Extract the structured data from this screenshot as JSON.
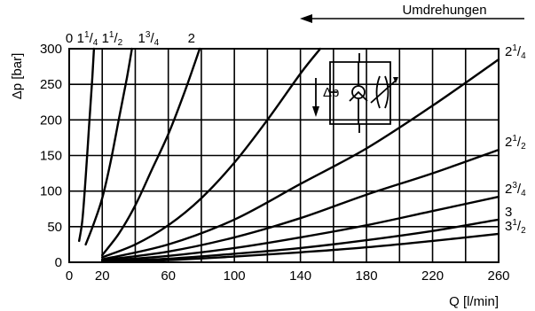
{
  "chart_data": {
    "type": "line",
    "xlabel": "Q [l/min]",
    "ylabel": "Δp [bar]",
    "top_axis_title": "Umdrehungen",
    "xlim": [
      0,
      260
    ],
    "ylim": [
      0,
      300
    ],
    "x_ticks": [
      {
        "value": 0,
        "label": "0"
      },
      {
        "value": 20,
        "label": "20"
      },
      {
        "value": 60,
        "label": "60"
      },
      {
        "value": 100,
        "label": "100"
      },
      {
        "value": 140,
        "label": "140"
      },
      {
        "value": 180,
        "label": "180"
      },
      {
        "value": 220,
        "label": "220"
      },
      {
        "value": 260,
        "label": "260"
      }
    ],
    "x_grid": [
      0,
      20,
      40,
      60,
      80,
      100,
      120,
      140,
      160,
      180,
      200,
      220,
      240,
      260
    ],
    "y_ticks": [
      {
        "value": 0,
        "label": "0"
      },
      {
        "value": 50,
        "label": "50"
      },
      {
        "value": 100,
        "label": "100"
      },
      {
        "value": 150,
        "label": "150"
      },
      {
        "value": 200,
        "label": "200"
      },
      {
        "value": 250,
        "label": "250"
      },
      {
        "value": 300,
        "label": "300"
      }
    ],
    "top_ticks": [
      {
        "value": 0,
        "whole": "0",
        "num": "",
        "den": ""
      },
      {
        "value": 11,
        "whole": "1",
        "num": "1",
        "den": "4"
      },
      {
        "value": 26,
        "whole": "1",
        "num": "1",
        "den": "2"
      },
      {
        "value": 48,
        "whole": "1",
        "num": "3",
        "den": "4"
      },
      {
        "value": 74,
        "whole": "2",
        "num": "",
        "den": ""
      }
    ],
    "series": [
      {
        "whole": "1",
        "num": "",
        "den": "",
        "points": [
          [
            6,
            30
          ],
          [
            8,
            60
          ],
          [
            10,
            120
          ],
          [
            12,
            190
          ],
          [
            14,
            260
          ],
          [
            15,
            300
          ]
        ]
      },
      {
        "whole": "1",
        "num": "1",
        "den": "4",
        "points": [
          [
            10,
            25
          ],
          [
            15,
            55
          ],
          [
            20,
            90
          ],
          [
            25,
            140
          ],
          [
            30,
            200
          ],
          [
            35,
            260
          ],
          [
            38,
            300
          ]
        ]
      },
      {
        "whole": "1",
        "num": "1",
        "den": "2",
        "points": [
          [
            20,
            10
          ],
          [
            30,
            40
          ],
          [
            40,
            80
          ],
          [
            50,
            130
          ],
          [
            60,
            180
          ],
          [
            70,
            240
          ],
          [
            79,
            300
          ]
        ]
      },
      {
        "whole": "1",
        "num": "3",
        "den": "4",
        "points": [
          [
            20,
            7
          ],
          [
            40,
            25
          ],
          [
            60,
            52
          ],
          [
            80,
            90
          ],
          [
            100,
            140
          ],
          [
            120,
            200
          ],
          [
            140,
            265
          ],
          [
            152,
            300
          ]
        ]
      },
      {
        "whole": "2",
        "num": "1",
        "den": "4",
        "points": [
          [
            20,
            4
          ],
          [
            60,
            25
          ],
          [
            100,
            60
          ],
          [
            140,
            110
          ],
          [
            180,
            160
          ],
          [
            220,
            220
          ],
          [
            260,
            285
          ]
        ]
      },
      {
        "whole": "2",
        "num": "1",
        "den": "2",
        "points": [
          [
            20,
            3
          ],
          [
            60,
            15
          ],
          [
            100,
            35
          ],
          [
            140,
            62
          ],
          [
            180,
            95
          ],
          [
            220,
            125
          ],
          [
            260,
            158
          ]
        ]
      },
      {
        "whole": "2",
        "num": "3",
        "den": "4",
        "points": [
          [
            20,
            2
          ],
          [
            60,
            9
          ],
          [
            100,
            20
          ],
          [
            140,
            35
          ],
          [
            180,
            52
          ],
          [
            220,
            72
          ],
          [
            260,
            92
          ]
        ]
      },
      {
        "whole": "3",
        "num": "",
        "den": "",
        "points": [
          [
            20,
            1
          ],
          [
            60,
            5
          ],
          [
            100,
            12
          ],
          [
            140,
            20
          ],
          [
            180,
            31
          ],
          [
            220,
            44
          ],
          [
            260,
            60
          ]
        ]
      },
      {
        "whole": "3",
        "num": "1",
        "den": "2",
        "points": [
          [
            20,
            0.5
          ],
          [
            60,
            3
          ],
          [
            100,
            8
          ],
          [
            140,
            14
          ],
          [
            180,
            21
          ],
          [
            220,
            30
          ],
          [
            260,
            40
          ]
        ]
      }
    ],
    "inset_label": "Δp"
  }
}
